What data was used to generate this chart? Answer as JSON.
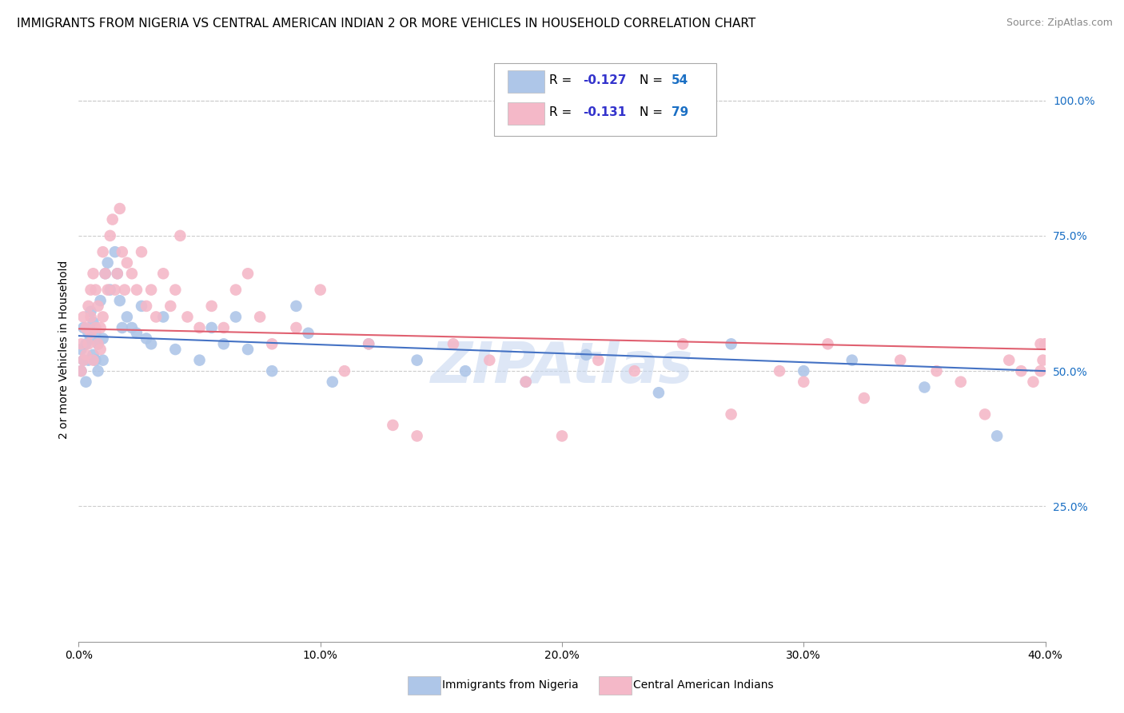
{
  "title": "IMMIGRANTS FROM NIGERIA VS CENTRAL AMERICAN INDIAN 2 OR MORE VEHICLES IN HOUSEHOLD CORRELATION CHART",
  "source": "Source: ZipAtlas.com",
  "ylabel": "2 or more Vehicles in Household",
  "xlim": [
    0.0,
    0.4
  ],
  "ylim": [
    0.0,
    1.08
  ],
  "xtick_values": [
    0.0,
    0.1,
    0.2,
    0.3,
    0.4
  ],
  "xtick_labels": [
    "0.0%",
    "10.0%",
    "20.0%",
    "30.0%",
    "40.0%"
  ],
  "ytick_values": [
    0.25,
    0.5,
    0.75,
    1.0
  ],
  "ytick_labels": [
    "25.0%",
    "50.0%",
    "75.0%",
    "100.0%"
  ],
  "watermark": "ZIPAtlas",
  "watermark_color": "#c8d8f0",
  "watermark_fontsize": 52,
  "title_fontsize": 11,
  "axis_label_fontsize": 10,
  "tick_fontsize": 10,
  "source_fontsize": 9,
  "series": [
    {
      "name": "Immigrants from Nigeria",
      "R": -0.127,
      "N": 54,
      "color": "#aec6e8",
      "line_color": "#4472c4",
      "x": [
        0.001,
        0.001,
        0.002,
        0.002,
        0.003,
        0.003,
        0.004,
        0.004,
        0.005,
        0.005,
        0.006,
        0.006,
        0.007,
        0.007,
        0.008,
        0.008,
        0.009,
        0.01,
        0.01,
        0.011,
        0.012,
        0.013,
        0.015,
        0.016,
        0.017,
        0.018,
        0.02,
        0.022,
        0.024,
        0.026,
        0.028,
        0.03,
        0.035,
        0.04,
        0.05,
        0.055,
        0.06,
        0.065,
        0.07,
        0.08,
        0.09,
        0.095,
        0.105,
        0.12,
        0.14,
        0.16,
        0.185,
        0.21,
        0.24,
        0.27,
        0.3,
        0.32,
        0.35,
        0.38
      ],
      "y": [
        0.54,
        0.5,
        0.52,
        0.58,
        0.55,
        0.48,
        0.57,
        0.52,
        0.56,
        0.61,
        0.53,
        0.59,
        0.52,
        0.57,
        0.55,
        0.5,
        0.63,
        0.56,
        0.52,
        0.68,
        0.7,
        0.65,
        0.72,
        0.68,
        0.63,
        0.58,
        0.6,
        0.58,
        0.57,
        0.62,
        0.56,
        0.55,
        0.6,
        0.54,
        0.52,
        0.58,
        0.55,
        0.6,
        0.54,
        0.5,
        0.62,
        0.57,
        0.48,
        0.55,
        0.52,
        0.5,
        0.48,
        0.53,
        0.46,
        0.55,
        0.5,
        0.52,
        0.47,
        0.38
      ]
    },
    {
      "name": "Central American Indians",
      "R": -0.131,
      "N": 79,
      "color": "#f4b8c8",
      "line_color": "#e06070",
      "x": [
        0.001,
        0.001,
        0.002,
        0.002,
        0.003,
        0.003,
        0.004,
        0.004,
        0.005,
        0.005,
        0.005,
        0.006,
        0.006,
        0.007,
        0.007,
        0.008,
        0.008,
        0.009,
        0.009,
        0.01,
        0.01,
        0.011,
        0.012,
        0.013,
        0.014,
        0.015,
        0.016,
        0.017,
        0.018,
        0.019,
        0.02,
        0.022,
        0.024,
        0.026,
        0.028,
        0.03,
        0.032,
        0.035,
        0.038,
        0.04,
        0.042,
        0.045,
        0.05,
        0.055,
        0.06,
        0.065,
        0.07,
        0.075,
        0.08,
        0.09,
        0.1,
        0.11,
        0.12,
        0.13,
        0.14,
        0.155,
        0.17,
        0.185,
        0.2,
        0.215,
        0.23,
        0.25,
        0.27,
        0.29,
        0.3,
        0.31,
        0.325,
        0.34,
        0.355,
        0.365,
        0.375,
        0.385,
        0.39,
        0.395,
        0.398,
        0.399,
        0.4,
        0.398,
        0.4
      ],
      "y": [
        0.55,
        0.5,
        0.6,
        0.52,
        0.58,
        0.53,
        0.62,
        0.55,
        0.6,
        0.65,
        0.57,
        0.52,
        0.68,
        0.58,
        0.65,
        0.55,
        0.62,
        0.58,
        0.54,
        0.6,
        0.72,
        0.68,
        0.65,
        0.75,
        0.78,
        0.65,
        0.68,
        0.8,
        0.72,
        0.65,
        0.7,
        0.68,
        0.65,
        0.72,
        0.62,
        0.65,
        0.6,
        0.68,
        0.62,
        0.65,
        0.75,
        0.6,
        0.58,
        0.62,
        0.58,
        0.65,
        0.68,
        0.6,
        0.55,
        0.58,
        0.65,
        0.5,
        0.55,
        0.4,
        0.38,
        0.55,
        0.52,
        0.48,
        0.38,
        0.52,
        0.5,
        0.55,
        0.42,
        0.5,
        0.48,
        0.55,
        0.45,
        0.52,
        0.5,
        0.48,
        0.42,
        0.52,
        0.5,
        0.48,
        0.55,
        0.52,
        0.55,
        0.5,
        0.55
      ]
    }
  ],
  "legend_box_colors": [
    "#aec6e8",
    "#f4b8c8"
  ],
  "legend_r_color": "#3333cc",
  "legend_n_color": "#1a6fc4",
  "grid_color": "#cccccc",
  "grid_linestyle": "--",
  "grid_linewidth": 0.8
}
